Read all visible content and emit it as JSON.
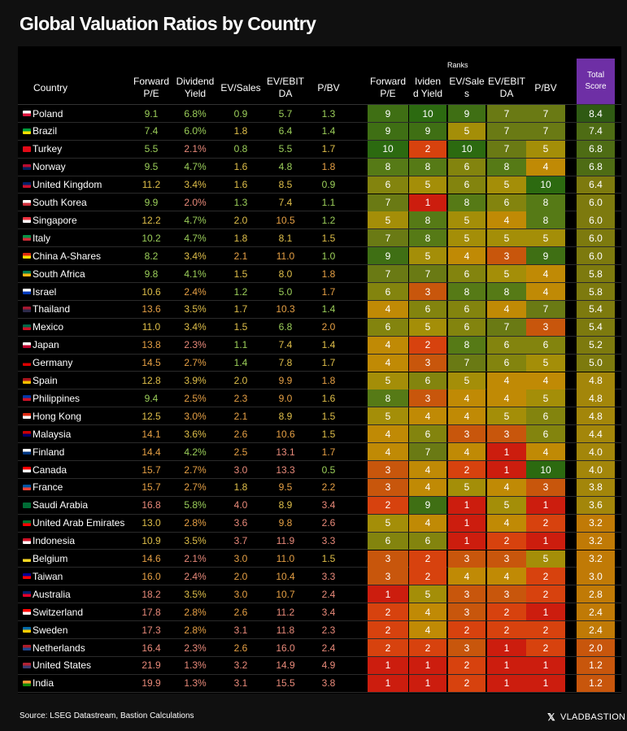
{
  "title": "Global Valuation Ratios by Country",
  "source": "Source: LSEG Datastream, Bastion Calculations",
  "brand": {
    "x": "𝕏",
    "name": "VLADBASTION"
  },
  "chart_data": {
    "type": "table",
    "ranks_caption": "Ranks",
    "headers": {
      "country": "Country",
      "metrics": [
        [
          "Forward",
          "P/E"
        ],
        [
          "Dividend",
          "Yield"
        ],
        [
          "EV/Sales",
          ""
        ],
        [
          "EV/EBIT",
          "DA"
        ],
        [
          "P/BV",
          ""
        ]
      ],
      "ranks": [
        [
          "Forward",
          "P/E"
        ],
        [
          "Ividen",
          "d Yield"
        ],
        [
          "EV/Sale",
          "s"
        ],
        [
          "EV/EBIT",
          "DA"
        ],
        [
          "P/BV",
          ""
        ]
      ],
      "total": [
        "Total",
        "Score"
      ]
    },
    "rows": [
      {
        "country": "Poland",
        "flag": [
          "#ffffff",
          "#dc143c"
        ],
        "values": [
          "9.1",
          "6.8%",
          "0.9",
          "5.7",
          "1.3"
        ],
        "ranks": [
          9,
          10,
          9,
          7,
          7
        ],
        "total": "8.4"
      },
      {
        "country": "Brazil",
        "flag": [
          "#009c3b",
          "#ffdf00"
        ],
        "values": [
          "7.4",
          "6.0%",
          "1.8",
          "6.4",
          "1.4"
        ],
        "ranks": [
          9,
          9,
          5,
          7,
          7
        ],
        "total": "7.4"
      },
      {
        "country": "Turkey",
        "flag": [
          "#e30a17",
          "#e30a17"
        ],
        "values": [
          "5.5",
          "2.1%",
          "0.8",
          "5.5",
          "1.7"
        ],
        "ranks": [
          10,
          2,
          10,
          7,
          5
        ],
        "total": "6.8"
      },
      {
        "country": "Norway",
        "flag": [
          "#ba0c2f",
          "#00205b"
        ],
        "values": [
          "9.5",
          "4.7%",
          "1.6",
          "4.8",
          "1.8"
        ],
        "ranks": [
          8,
          8,
          6,
          8,
          4
        ],
        "total": "6.8"
      },
      {
        "country": "United Kingdom",
        "flag": [
          "#012169",
          "#c8102e"
        ],
        "values": [
          "11.2",
          "3.4%",
          "1.6",
          "8.5",
          "0.9"
        ],
        "ranks": [
          6,
          5,
          6,
          5,
          10
        ],
        "total": "6.4"
      },
      {
        "country": "South Korea",
        "flag": [
          "#ffffff",
          "#cd2e3a"
        ],
        "values": [
          "9.9",
          "2.0%",
          "1.3",
          "7.4",
          "1.1"
        ],
        "ranks": [
          7,
          1,
          8,
          6,
          8
        ],
        "total": "6.0"
      },
      {
        "country": "Singapore",
        "flag": [
          "#ef3340",
          "#ffffff"
        ],
        "values": [
          "12.2",
          "4.7%",
          "2.0",
          "10.5",
          "1.2"
        ],
        "ranks": [
          5,
          8,
          5,
          4,
          8
        ],
        "total": "6.0"
      },
      {
        "country": "Italy",
        "flag": [
          "#009246",
          "#ce2b37"
        ],
        "values": [
          "10.2",
          "4.7%",
          "1.8",
          "8.1",
          "1.5"
        ],
        "ranks": [
          7,
          8,
          5,
          5,
          5
        ],
        "total": "6.0"
      },
      {
        "country": "China A-Shares",
        "flag": [
          "#de2910",
          "#ffde00"
        ],
        "values": [
          "8.2",
          "3.4%",
          "2.1",
          "11.0",
          "1.0"
        ],
        "ranks": [
          9,
          5,
          4,
          3,
          9
        ],
        "total": "6.0"
      },
      {
        "country": "South Africa",
        "flag": [
          "#007a4d",
          "#ffb612"
        ],
        "values": [
          "9.8",
          "4.1%",
          "1.5",
          "8.0",
          "1.8"
        ],
        "ranks": [
          7,
          7,
          6,
          5,
          4
        ],
        "total": "5.8"
      },
      {
        "country": "Israel",
        "flag": [
          "#ffffff",
          "#0038b8"
        ],
        "values": [
          "10.6",
          "2.4%",
          "1.2",
          "5.0",
          "1.7"
        ],
        "ranks": [
          6,
          3,
          8,
          8,
          4
        ],
        "total": "5.8"
      },
      {
        "country": "Thailand",
        "flag": [
          "#a51931",
          "#2d2a4a"
        ],
        "values": [
          "13.6",
          "3.5%",
          "1.7",
          "10.3",
          "1.4"
        ],
        "ranks": [
          4,
          6,
          6,
          4,
          7
        ],
        "total": "5.4"
      },
      {
        "country": "Mexico",
        "flag": [
          "#006847",
          "#ce1126"
        ],
        "values": [
          "11.0",
          "3.4%",
          "1.5",
          "6.8",
          "2.0"
        ],
        "ranks": [
          6,
          5,
          6,
          7,
          3
        ],
        "total": "5.4"
      },
      {
        "country": "Japan",
        "flag": [
          "#ffffff",
          "#bc002d"
        ],
        "values": [
          "13.8",
          "2.3%",
          "1.1",
          "7.4",
          "1.4"
        ],
        "ranks": [
          4,
          2,
          8,
          6,
          6
        ],
        "total": "5.2"
      },
      {
        "country": "Germany",
        "flag": [
          "#000000",
          "#dd0000"
        ],
        "values": [
          "14.5",
          "2.7%",
          "1.4",
          "7.8",
          "1.7"
        ],
        "ranks": [
          4,
          3,
          7,
          6,
          5
        ],
        "total": "5.0"
      },
      {
        "country": "Spain",
        "flag": [
          "#aa151b",
          "#f1bf00"
        ],
        "values": [
          "12.8",
          "3.9%",
          "2.0",
          "9.9",
          "1.8"
        ],
        "ranks": [
          5,
          6,
          5,
          4,
          4
        ],
        "total": "4.8"
      },
      {
        "country": "Philippines",
        "flag": [
          "#0038a8",
          "#ce1126"
        ],
        "values": [
          "9.4",
          "2.5%",
          "2.3",
          "9.0",
          "1.6"
        ],
        "ranks": [
          8,
          3,
          4,
          4,
          5
        ],
        "total": "4.8"
      },
      {
        "country": "Hong Kong",
        "flag": [
          "#de2910",
          "#ffffff"
        ],
        "values": [
          "12.5",
          "3.0%",
          "2.1",
          "8.9",
          "1.5"
        ],
        "ranks": [
          5,
          4,
          4,
          5,
          6
        ],
        "total": "4.8"
      },
      {
        "country": "Malaysia",
        "flag": [
          "#cc0001",
          "#010066"
        ],
        "values": [
          "14.1",
          "3.6%",
          "2.6",
          "10.6",
          "1.5"
        ],
        "ranks": [
          4,
          6,
          3,
          3,
          6
        ],
        "total": "4.4"
      },
      {
        "country": "Finland",
        "flag": [
          "#ffffff",
          "#003580"
        ],
        "values": [
          "14.4",
          "4.2%",
          "2.5",
          "13.1",
          "1.7"
        ],
        "ranks": [
          4,
          7,
          4,
          1,
          4
        ],
        "total": "4.0"
      },
      {
        "country": "Canada",
        "flag": [
          "#ff0000",
          "#ffffff"
        ],
        "values": [
          "15.7",
          "2.7%",
          "3.0",
          "13.3",
          "0.5"
        ],
        "ranks": [
          3,
          4,
          2,
          1,
          10
        ],
        "total": "4.0"
      },
      {
        "country": "France",
        "flag": [
          "#0055a4",
          "#ef4135"
        ],
        "values": [
          "15.7",
          "2.7%",
          "1.8",
          "9.5",
          "2.2"
        ],
        "ranks": [
          3,
          4,
          5,
          4,
          3
        ],
        "total": "3.8"
      },
      {
        "country": " Saudi Arabia",
        "flag": [
          "#006c35",
          "#006c35"
        ],
        "values": [
          "16.8",
          "5.8%",
          "4.0",
          "8.9",
          "3.4"
        ],
        "ranks": [
          2,
          9,
          1,
          5,
          1
        ],
        "total": "3.6"
      },
      {
        "country": "United Arab Emirates",
        "flag": [
          "#00732f",
          "#ff0000"
        ],
        "values": [
          "13.0",
          "2.8%",
          "3.6",
          "9.8",
          "2.6"
        ],
        "ranks": [
          5,
          4,
          1,
          4,
          2
        ],
        "total": "3.2"
      },
      {
        "country": "Indonesia",
        "flag": [
          "#ce1126",
          "#ffffff"
        ],
        "values": [
          "10.9",
          "3.5%",
          "3.7",
          "11.9",
          "3.3"
        ],
        "ranks": [
          6,
          6,
          1,
          2,
          1
        ],
        "total": "3.2"
      },
      {
        "country": "Belgium",
        "flag": [
          "#000000",
          "#fdda24"
        ],
        "values": [
          "14.6",
          "2.1%",
          "3.0",
          "11.0",
          "1.5"
        ],
        "ranks": [
          3,
          2,
          3,
          3,
          5
        ],
        "total": "3.2"
      },
      {
        "country": "Taiwan",
        "flag": [
          "#000095",
          "#fe0000"
        ],
        "values": [
          "16.0",
          "2.4%",
          "2.0",
          "10.4",
          "3.3"
        ],
        "ranks": [
          3,
          2,
          4,
          4,
          2
        ],
        "total": "3.0"
      },
      {
        "country": "Australia",
        "flag": [
          "#012169",
          "#e4002b"
        ],
        "values": [
          "18.2",
          "3.5%",
          "3.0",
          "10.7",
          "2.4"
        ],
        "ranks": [
          1,
          5,
          3,
          3,
          2
        ],
        "total": "2.8"
      },
      {
        "country": "Switzerland",
        "flag": [
          "#ff0000",
          "#ffffff"
        ],
        "values": [
          "17.8",
          "2.8%",
          "2.6",
          "11.2",
          "3.4"
        ],
        "ranks": [
          2,
          4,
          3,
          2,
          1
        ],
        "total": "2.4"
      },
      {
        "country": "Sweden",
        "flag": [
          "#006aa7",
          "#fecc00"
        ],
        "values": [
          "17.3",
          "2.8%",
          "3.1",
          "11.8",
          "2.3"
        ],
        "ranks": [
          2,
          4,
          2,
          2,
          2
        ],
        "total": "2.4"
      },
      {
        "country": "Netherlands",
        "flag": [
          "#ae1c28",
          "#21468b"
        ],
        "values": [
          "16.4",
          "2.3%",
          "2.6",
          "16.0",
          "2.4"
        ],
        "ranks": [
          2,
          2,
          3,
          1,
          2
        ],
        "total": "2.0"
      },
      {
        "country": "United States",
        "flag": [
          "#b22234",
          "#3c3b6e"
        ],
        "values": [
          "21.9",
          "1.3%",
          "3.2",
          "14.9",
          "4.9"
        ],
        "ranks": [
          1,
          1,
          2,
          1,
          1
        ],
        "total": "1.2"
      },
      {
        "country": "India",
        "flag": [
          "#ff9933",
          "#138808"
        ],
        "values": [
          "19.9",
          "1.3%",
          "3.1",
          "15.5",
          "3.8"
        ],
        "ranks": [
          1,
          1,
          2,
          1,
          1
        ],
        "total": "1.2"
      }
    ],
    "rank_colors": {
      "1": "#cc1d0e",
      "2": "#d7420e",
      "3": "#c8560c",
      "4": "#c08a05",
      "5": "#a48e08",
      "6": "#83840e",
      "7": "#6a7a14",
      "8": "#567a16",
      "9": "#3f6f14",
      "10": "#2c6a10"
    },
    "total_colors": {
      "high": "#2f5a13",
      "mid_high": "#4e6c14",
      "mid": "#7d7a0e",
      "mid_low": "#a3860a",
      "low": "#c07a06",
      "lowest": "#c8560c"
    },
    "text_colors": {
      "good": "#9ccf5a",
      "mid": "#e0bf4a",
      "warm": "#e6a045",
      "bad": "#e98a7a"
    }
  }
}
